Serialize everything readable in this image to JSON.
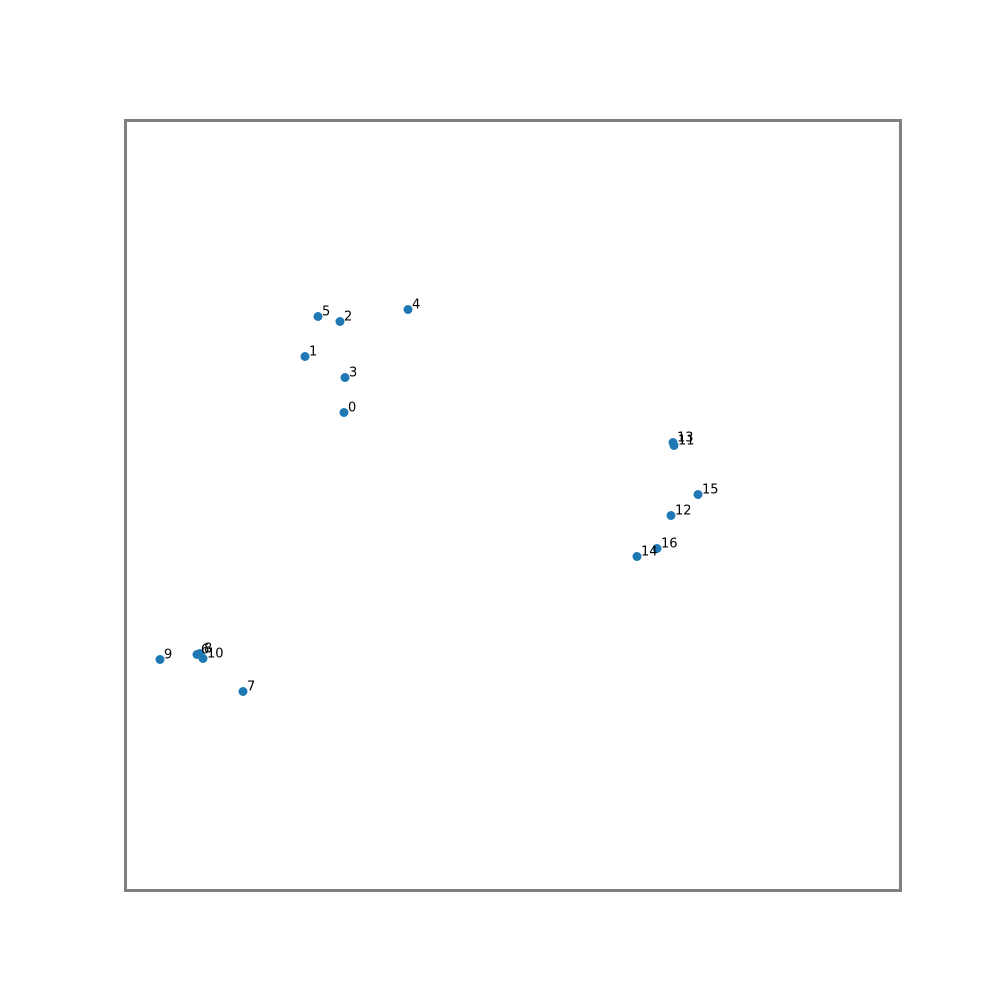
{
  "chart_data": {
    "type": "scatter",
    "title": "",
    "xlabel": "",
    "ylabel": "",
    "xlim": [
      0,
      775
    ],
    "ylim": [
      0,
      770
    ],
    "grid": false,
    "axes_ticks": false,
    "colors": {
      "marker": "#1f77b4",
      "frame": "#808080"
    },
    "points": [
      {
        "label": "0",
        "x": 218.5,
        "y": 478
      },
      {
        "label": "1",
        "x": 179.5,
        "y": 534
      },
      {
        "label": "2",
        "x": 214.5,
        "y": 569
      },
      {
        "label": "3",
        "x": 219.5,
        "y": 513
      },
      {
        "label": "4",
        "x": 282.5,
        "y": 581
      },
      {
        "label": "5",
        "x": 192.5,
        "y": 574
      },
      {
        "label": "6",
        "x": 71.5,
        "y": 236
      },
      {
        "label": "7",
        "x": 117.5,
        "y": 199
      },
      {
        "label": "8",
        "x": 74.5,
        "y": 237
      },
      {
        "label": "9",
        "x": 34.5,
        "y": 231
      },
      {
        "label": "10",
        "x": 77.5,
        "y": 232
      },
      {
        "label": "11",
        "x": 548.5,
        "y": 445
      },
      {
        "label": "12",
        "x": 545.5,
        "y": 375
      },
      {
        "label": "13",
        "x": 547.5,
        "y": 448
      },
      {
        "label": "14",
        "x": 511.5,
        "y": 334
      },
      {
        "label": "15",
        "x": 572.5,
        "y": 396
      },
      {
        "label": "16",
        "x": 531.5,
        "y": 342
      }
    ]
  }
}
